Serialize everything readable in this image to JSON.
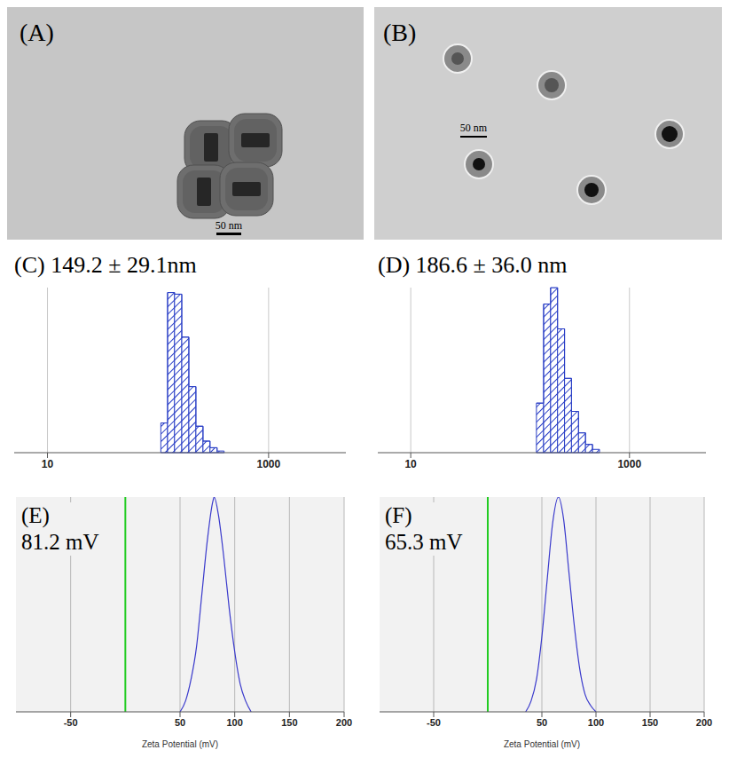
{
  "images": [
    {
      "panel": "(A)",
      "scale_bar": "50 nm"
    },
    {
      "panel": "(B)",
      "scale_bar": "50 nm"
    }
  ],
  "chart_data": [
    {
      "type": "histogram",
      "panel": "(C)",
      "title": "149.2 ± 29.1nm",
      "bins": [
        106,
        122,
        141,
        164,
        190,
        220,
        255,
        295,
        342,
        396
      ],
      "values": [
        18,
        97,
        96,
        70,
        40,
        16,
        7,
        3,
        1
      ],
      "color": "#2a3fc6",
      "log": "x",
      "xlim": [
        5,
        5000
      ],
      "xticks": [
        10,
        1000
      ],
      "ylim": [
        0,
        100
      ],
      "yticks": [
        0,
        20,
        40,
        60,
        80,
        100
      ],
      "grid": true,
      "tick_labels": "x"
    },
    {
      "type": "histogram",
      "panel": "(D)",
      "title": "186.6 ± 36.0 nm",
      "bins": [
        141,
        164,
        190,
        220,
        255,
        295,
        342,
        396,
        459,
        532
      ],
      "values": [
        30,
        90,
        100,
        75,
        45,
        25,
        12,
        5,
        2
      ],
      "color": "#2a3fc6",
      "log": "x",
      "xlim": [
        5,
        5000
      ],
      "xticks": [
        10,
        1000
      ],
      "ylim": [
        0,
        100
      ],
      "yticks": [
        0,
        20,
        40,
        60,
        80,
        100
      ],
      "grid": true,
      "tick_labels": "x"
    },
    {
      "type": "line",
      "panel": "(E)",
      "title": "81.2 mV",
      "x": [
        50,
        55,
        60,
        65,
        70,
        75,
        80,
        81.2,
        85,
        90,
        95,
        100,
        105,
        110,
        115
      ],
      "values": [
        0,
        5,
        15,
        30,
        55,
        80,
        98,
        100,
        92,
        72,
        48,
        28,
        13,
        5,
        0
      ],
      "color": "#3a3acc",
      "xlabel": "Zeta Potential (mV)",
      "xlim": [
        -100,
        200
      ],
      "xticks": [
        -50,
        50,
        100,
        150,
        200
      ],
      "ylim": [
        0,
        100
      ],
      "yticks": [
        0,
        10,
        20,
        30,
        40,
        50,
        60,
        70,
        80,
        90,
        100
      ],
      "grid": true,
      "tick_labels": "x",
      "reference_line": 0
    },
    {
      "type": "line",
      "panel": "(F)",
      "title": "65.3 mV",
      "x": [
        35,
        40,
        45,
        50,
        55,
        60,
        65.3,
        70,
        75,
        80,
        85,
        90,
        95,
        100
      ],
      "values": [
        0,
        5,
        15,
        35,
        62,
        88,
        100,
        90,
        65,
        40,
        20,
        8,
        3,
        0
      ],
      "color": "#3a3acc",
      "xlabel": "Zeta Potential (mV)",
      "xlim": [
        -100,
        200
      ],
      "xticks": [
        -50,
        50,
        100,
        150,
        200
      ],
      "ylim": [
        0,
        100
      ],
      "yticks": [
        0,
        10,
        20,
        30,
        40,
        50,
        60,
        70,
        80,
        90,
        100
      ],
      "grid": true,
      "tick_labels": "x",
      "reference_line": 0
    }
  ]
}
